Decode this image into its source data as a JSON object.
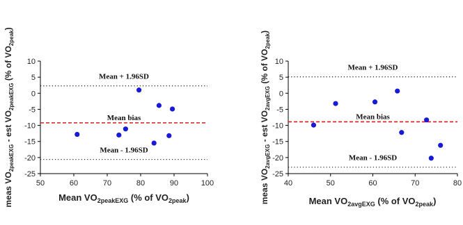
{
  "chart_data": [
    {
      "type": "scatter",
      "xlabel": {
        "pre": "Mean VO",
        "sub": "2peakEXG",
        "mid": " (% of VO",
        "sub2": "2peak",
        "post": ")"
      },
      "ylabel": {
        "p1": "meas VO",
        "s1": "2peakEXG",
        "p2": " - est VO",
        "s2": "2peakEXG",
        "p3": " (% of VO",
        "s3": "2peak",
        "p4": ")"
      },
      "xlim": [
        50,
        100
      ],
      "ylim": [
        -25,
        10
      ],
      "xticks": [
        50,
        60,
        70,
        80,
        90,
        100
      ],
      "yticks": [
        10,
        5,
        0,
        -5,
        -10,
        -15,
        -20,
        -25
      ],
      "tick_labels_x": [
        "50",
        "60",
        "70",
        "80",
        "90",
        "100"
      ],
      "tick_labels_y": [
        "10",
        "5",
        "0",
        "-5",
        "-10",
        "-15",
        "-20",
        "-25"
      ],
      "lines": [
        {
          "name": "Mean + 1.96SD",
          "y": 2.3,
          "style": "dotted"
        },
        {
          "name": "Mean bias",
          "y": -9.2,
          "style": "dashed",
          "color": "#e11b1b"
        },
        {
          "name": "Mean - 1.96SD",
          "y": -20.6,
          "style": "dotted"
        }
      ],
      "points": [
        {
          "x": 61,
          "y": -12.8
        },
        {
          "x": 73.5,
          "y": -13.0
        },
        {
          "x": 75.5,
          "y": -11.1
        },
        {
          "x": 79.5,
          "y": 1.0
        },
        {
          "x": 84,
          "y": -15.5
        },
        {
          "x": 85.5,
          "y": -3.8
        },
        {
          "x": 88.5,
          "y": -13.2
        },
        {
          "x": 89.5,
          "y": -4.9
        }
      ],
      "marker_color": "#1a1ad6",
      "grid": false
    },
    {
      "type": "scatter",
      "xlabel": {
        "pre": "Mean VO",
        "sub": "2avgEXG",
        "mid": " (% of VO",
        "sub2": "2peak",
        "post": ")"
      },
      "ylabel": {
        "p1": "meas VO",
        "s1": "2avgEXG",
        "p2": " - est VO",
        "s2": "2avgEXG",
        "p3": " (% of VO",
        "s3": "2peak",
        "p4": ")"
      },
      "xlim": [
        40,
        80
      ],
      "ylim": [
        -25,
        10
      ],
      "xticks": [
        40,
        50,
        60,
        70,
        80
      ],
      "yticks": [
        10,
        5,
        0,
        -5,
        -10,
        -15,
        -20,
        -25
      ],
      "tick_labels_x": [
        "40",
        "50",
        "60",
        "70",
        "80"
      ],
      "tick_labels_y": [
        "10",
        "5",
        "0",
        "-5",
        "-10",
        "-15",
        "-20",
        "-25"
      ],
      "lines": [
        {
          "name": "Mean + 1.96SD",
          "y": 5.1,
          "style": "dotted"
        },
        {
          "name": "Mean bias",
          "y": -8.9,
          "style": "dashed",
          "color": "#e11b1b"
        },
        {
          "name": "Mean - 1.96SD",
          "y": -23.0,
          "style": "dotted"
        }
      ],
      "points": [
        {
          "x": 46,
          "y": -9.9
        },
        {
          "x": 51.2,
          "y": -3.2
        },
        {
          "x": 60.5,
          "y": -2.7
        },
        {
          "x": 65.8,
          "y": 0.7
        },
        {
          "x": 66.8,
          "y": -12.2
        },
        {
          "x": 72.7,
          "y": -8.3
        },
        {
          "x": 73.8,
          "y": -20.2
        },
        {
          "x": 76.0,
          "y": -16.2
        }
      ],
      "marker_color": "#1a1ad6",
      "grid": false
    }
  ]
}
